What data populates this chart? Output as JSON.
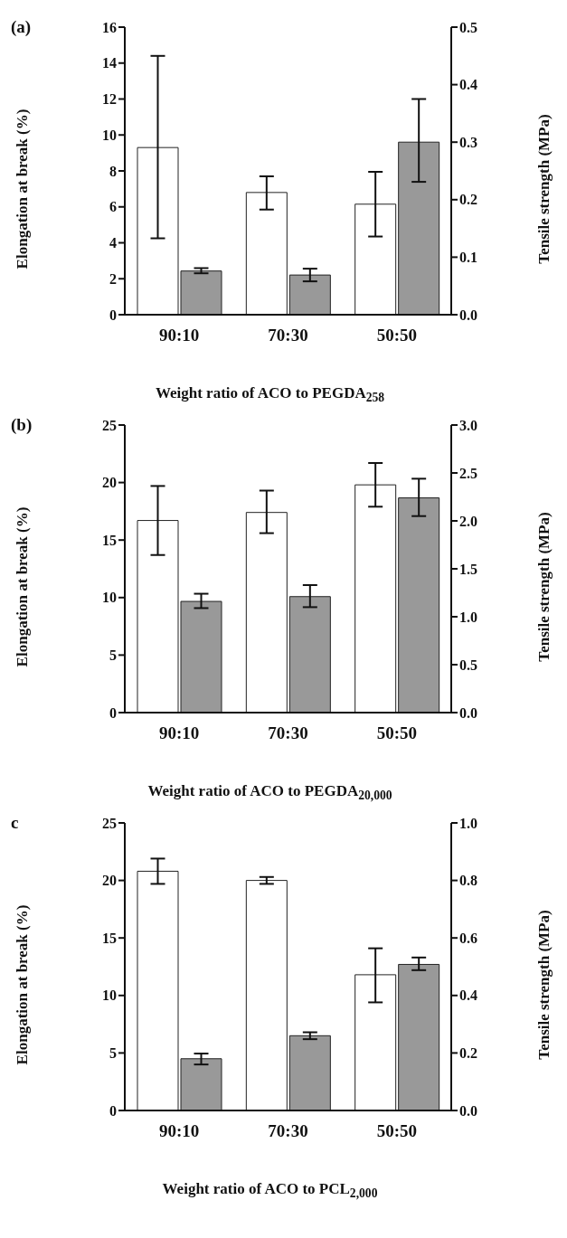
{
  "chart_data": [
    {
      "type": "bar",
      "title": "(a)",
      "xlabel": "Weight ratio of ACO to PEGDA$_{258}$",
      "ylabel": "Elongation at break (%)",
      "y2label": "Tensile strength (MPa)",
      "categories": [
        "90:10",
        "70:30",
        "50:50"
      ],
      "series": [
        {
          "color": "#ffffff",
          "values": [
            9.3,
            6.8,
            6.15
          ],
          "errors": [
            [
              4.25,
              14.4
            ],
            [
              5.85,
              7.7
            ],
            [
              4.35,
              7.95
            ]
          ]
        },
        {
          "color": "#999999",
          "axis": "y2",
          "values": [
            0.076,
            0.069,
            0.3
          ],
          "errors": [
            [
              0.072,
              0.081
            ],
            [
              0.058,
              0.08
            ],
            [
              0.231,
              0.375
            ]
          ]
        }
      ],
      "ylim": [
        0,
        16
      ],
      "yticks": [
        0,
        2,
        4,
        6,
        8,
        10,
        12,
        14,
        16
      ],
      "y2lim": [
        0,
        0.5
      ],
      "y2ticks": [
        {
          "value": 0,
          "label": "0.0"
        },
        0.1,
        0.2,
        0.3,
        0.4,
        0.5
      ],
      "grid": false,
      "legend": false
    },
    {
      "type": "bar",
      "title": "(b)",
      "xlabel": "Weight ratio of ACO to PEGDA$_{20,000}$",
      "ylabel": "Elongation at break (%)",
      "y2label": "Tensile strength (MPa)",
      "categories": [
        "90:10",
        "70:30",
        "50:50"
      ],
      "series": [
        {
          "color": "#ffffff",
          "values": [
            16.7,
            17.4,
            19.8
          ],
          "errors": [
            [
              13.7,
              19.7
            ],
            [
              15.6,
              19.3
            ],
            [
              17.9,
              21.7
            ]
          ]
        },
        {
          "color": "#999999",
          "axis": "y2",
          "values": [
            1.16,
            1.21,
            2.24
          ],
          "errors": [
            [
              1.09,
              1.24
            ],
            [
              1.1,
              1.33
            ],
            [
              2.05,
              2.44
            ]
          ]
        }
      ],
      "ylim": [
        0,
        25
      ],
      "yticks": [
        0,
        5,
        10,
        15,
        20,
        25
      ],
      "y2lim": [
        0,
        3
      ],
      "y2ticks": [
        {
          "value": 0,
          "label": "0.0"
        },
        0.5,
        {
          "value": 1,
          "label": "1.0"
        },
        1.5,
        {
          "value": 2,
          "label": "2.0"
        },
        2.5,
        {
          "value": 3,
          "label": "3.0"
        }
      ],
      "grid": false,
      "legend": false
    },
    {
      "type": "bar",
      "title": "c",
      "xlabel": "Weight ratio of ACO to PCL$_{2,000}$",
      "ylabel": "Elongation at break (%)",
      "y2label": "Tensile strength (MPa)",
      "categories": [
        "90:10",
        "70:30",
        "50:50"
      ],
      "series": [
        {
          "color": "#ffffff",
          "values": [
            20.8,
            20.0,
            11.8
          ],
          "errors": [
            [
              19.7,
              21.9
            ],
            [
              19.7,
              20.3
            ],
            [
              9.4,
              14.1
            ]
          ]
        },
        {
          "color": "#999999",
          "axis": "y2",
          "values": [
            0.18,
            0.26,
            0.508
          ],
          "errors": [
            [
              0.16,
              0.198
            ],
            [
              0.248,
              0.272
            ],
            [
              0.488,
              0.532
            ]
          ]
        }
      ],
      "ylim": [
        0,
        25
      ],
      "yticks": [
        0,
        5,
        10,
        15,
        20,
        25
      ],
      "y2lim": [
        0,
        1
      ],
      "y2ticks": [
        {
          "value": 0,
          "label": "0.0"
        },
        0.2,
        0.4,
        0.6,
        0.8,
        {
          "value": 1,
          "label": "1.0"
        }
      ],
      "grid": false,
      "legend": false
    }
  ]
}
